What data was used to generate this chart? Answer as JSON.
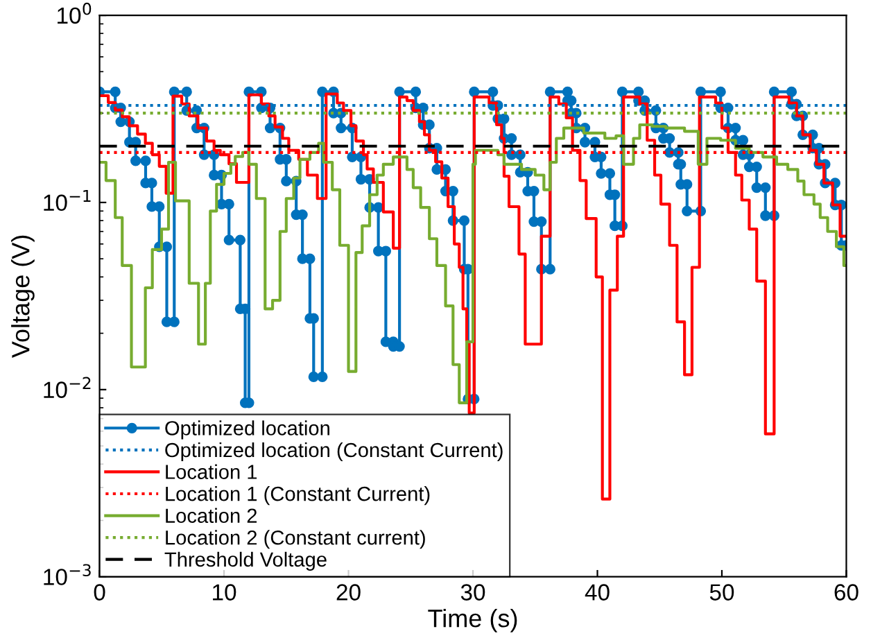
{
  "chart_data": {
    "type": "step",
    "xlabel": "Time (s)",
    "ylabel": "Voltage (V)",
    "log": "y",
    "grid": false,
    "legend": "bottom left",
    "xlim": [
      0,
      60
    ],
    "xticks": [
      0,
      10,
      20,
      30,
      40,
      50,
      60
    ],
    "ylim": [
      0.001,
      1
    ],
    "yticks": [
      {
        "value": 0.001,
        "label": "10$^{−3}$"
      },
      {
        "value": 0.01,
        "label": "10$^{−2}$"
      },
      {
        "value": 0.1,
        "label": "10$^{−1}$"
      },
      {
        "value": 1,
        "label": "10$^{0}$"
      }
    ],
    "series": [
      {
        "name": "Optimized location",
        "type": "line",
        "color": "#0072bd",
        "marker": "circle",
        "line_style": "solid",
        "x": [
          0,
          1.26,
          1.26,
          1.7,
          1.7,
          2.4,
          2.4,
          2.9,
          2.9,
          3.7,
          3.7,
          4.2,
          4.2,
          4.8,
          4.8,
          5.4,
          5.4,
          6.0,
          6.0,
          7.0,
          7.0,
          7.8,
          7.8,
          8.4,
          8.4,
          9.2,
          9.2,
          9.8,
          9.8,
          10.4,
          10.4,
          11.3,
          11.3,
          11.7,
          11.7,
          12.0,
          12.0,
          13.0,
          13.0,
          13.7,
          13.7,
          14.5,
          14.5,
          15.0,
          15.0,
          15.8,
          15.8,
          16.3,
          16.3,
          16.9,
          16.9,
          17.2,
          17.2,
          17.9,
          17.9,
          18.8,
          18.8,
          19.4,
          19.4,
          20.3,
          20.3,
          21.0,
          21.0,
          21.7,
          21.7,
          22.4,
          22.4,
          23.0,
          23.0,
          23.6,
          23.6,
          24.1,
          24.1,
          25.4,
          25.4,
          26.0,
          26.0,
          26.5,
          26.5,
          27.1,
          27.1,
          27.8,
          27.8,
          28.4,
          28.4,
          29.3,
          29.3,
          29.6,
          29.6,
          30.1,
          30.1,
          31.6,
          31.6,
          32.0,
          32.0,
          32.5,
          32.5,
          33.1,
          33.1,
          33.8,
          33.8,
          34.4,
          34.4,
          34.9,
          34.9,
          35.5,
          35.5,
          36.2,
          36.2,
          37.6,
          37.6,
          37.9,
          37.9,
          38.3,
          38.3,
          39.0,
          39.0,
          39.8,
          39.8,
          40.3,
          40.3,
          41.0,
          41.0,
          41.4,
          41.4,
          42.0,
          42.0,
          43.3,
          43.3,
          43.8,
          43.8,
          44.7,
          44.7,
          45.3,
          45.3,
          45.8,
          45.8,
          46.5,
          46.5,
          46.7,
          46.7,
          47.2,
          47.2,
          48.3,
          48.3,
          49.9,
          49.9,
          50.5,
          50.5,
          51.1,
          51.1,
          51.7,
          51.7,
          52.2,
          52.2,
          52.8,
          52.8,
          53.5,
          53.5,
          54.2,
          54.2,
          55.6,
          55.6,
          56.0,
          56.0,
          56.5,
          56.5,
          57.3,
          57.3,
          57.8,
          57.8,
          58.3,
          58.3,
          59.1,
          59.1,
          59.6,
          59.6,
          60
        ],
        "values": [
          0.39,
          0.39,
          0.32,
          0.32,
          0.27,
          0.27,
          0.21,
          0.21,
          0.167,
          0.167,
          0.127,
          0.127,
          0.095,
          0.095,
          0.058,
          0.058,
          0.023,
          0.023,
          0.39,
          0.39,
          0.31,
          0.31,
          0.25,
          0.25,
          0.18,
          0.18,
          0.14,
          0.14,
          0.098,
          0.098,
          0.063,
          0.063,
          0.027,
          0.027,
          0.0085,
          0.0085,
          0.39,
          0.39,
          0.32,
          0.32,
          0.25,
          0.25,
          0.17,
          0.17,
          0.13,
          0.13,
          0.086,
          0.086,
          0.05,
          0.05,
          0.024,
          0.024,
          0.0117,
          0.0117,
          0.39,
          0.39,
          0.3,
          0.3,
          0.25,
          0.25,
          0.175,
          0.175,
          0.133,
          0.133,
          0.094,
          0.094,
          0.055,
          0.055,
          0.018,
          0.018,
          0.017,
          0.017,
          0.39,
          0.39,
          0.32,
          0.32,
          0.26,
          0.26,
          0.195,
          0.195,
          0.15,
          0.15,
          0.115,
          0.115,
          0.08,
          0.08,
          0.044,
          0.044,
          0.0089,
          0.0089,
          0.39,
          0.39,
          0.33,
          0.33,
          0.28,
          0.28,
          0.22,
          0.22,
          0.18,
          0.18,
          0.145,
          0.145,
          0.115,
          0.115,
          0.079,
          0.079,
          0.044,
          0.044,
          0.39,
          0.39,
          0.35,
          0.35,
          0.3,
          0.3,
          0.25,
          0.25,
          0.21,
          0.21,
          0.175,
          0.175,
          0.143,
          0.143,
          0.11,
          0.11,
          0.075,
          0.075,
          0.39,
          0.39,
          0.35,
          0.35,
          0.31,
          0.31,
          0.25,
          0.25,
          0.22,
          0.22,
          0.185,
          0.185,
          0.16,
          0.16,
          0.125,
          0.125,
          0.09,
          0.09,
          0.39,
          0.39,
          0.32,
          0.32,
          0.25,
          0.25,
          0.215,
          0.215,
          0.18,
          0.18,
          0.155,
          0.155,
          0.12,
          0.12,
          0.085,
          0.085,
          0.39,
          0.39,
          0.335,
          0.335,
          0.29,
          0.29,
          0.23,
          0.23,
          0.195,
          0.195,
          0.16,
          0.16,
          0.127,
          0.127,
          0.097,
          0.097,
          0.059,
          0.059
        ]
      },
      {
        "name": "Location 1",
        "color": "#ff0000",
        "line_style": "solid",
        "x": [
          0,
          0.7,
          1.26,
          1.82,
          2.38,
          3.05,
          3.68,
          4.24,
          4.8,
          5.35,
          5.9,
          6.6,
          7.2,
          7.9,
          8.6,
          9.2,
          9.7,
          10.4,
          11.0,
          12.0,
          13.0,
          13.6,
          14.1,
          14.7,
          15.2,
          16.0,
          16.7,
          17.5,
          18.2,
          19.1,
          19.6,
          20.2,
          20.6,
          21.2,
          21.5,
          22.0,
          22.8,
          23.6,
          24.1,
          24.7,
          25.2,
          25.7,
          26.1,
          26.5,
          27.0,
          27.5,
          28.0,
          28.5,
          28.9,
          29.2,
          29.5,
          29.7,
          30.1,
          31.3,
          31.9,
          32.3,
          32.5,
          32.9,
          33.7,
          34.2,
          35.5,
          36.2,
          36.9,
          37.5,
          38.0,
          38.6,
          39.1,
          39.9,
          40.4,
          41.0,
          41.6,
          42.1,
          43.4,
          44.0,
          44.6,
          45.1,
          45.8,
          46.4,
          47.0,
          47.6,
          48.2,
          49.5,
          50.0,
          50.5,
          51.1,
          51.6,
          52.2,
          52.8,
          53.5,
          54.2,
          55.4,
          56.0,
          56.5,
          57.1,
          57.6,
          58.2,
          58.9,
          59.5,
          60
        ],
        "values": [
          0.372,
          0.342,
          0.312,
          0.287,
          0.257,
          0.232,
          0.207,
          0.18,
          0.156,
          0.112,
          0.37,
          0.336,
          0.29,
          0.25,
          0.213,
          0.19,
          0.18,
          0.161,
          0.128,
          0.376,
          0.336,
          0.29,
          0.253,
          0.22,
          0.19,
          0.17,
          0.14,
          0.105,
          0.38,
          0.34,
          0.31,
          0.257,
          0.213,
          0.18,
          0.151,
          0.128,
          0.089,
          0.057,
          0.366,
          0.35,
          0.31,
          0.27,
          0.23,
          0.19,
          0.165,
          0.135,
          0.095,
          0.06,
          0.045,
          0.027,
          0.018,
          0.0075,
          0.366,
          0.34,
          0.26,
          0.22,
          0.138,
          0.095,
          0.053,
          0.0175,
          0.066,
          0.366,
          0.336,
          0.283,
          0.19,
          0.131,
          0.082,
          0.04,
          0.0026,
          0.034,
          0.066,
          0.366,
          0.336,
          0.215,
          0.14,
          0.098,
          0.059,
          0.023,
          0.012,
          0.045,
          0.366,
          0.34,
          0.25,
          0.185,
          0.14,
          0.103,
          0.072,
          0.038,
          0.0058,
          0.366,
          0.34,
          0.29,
          0.23,
          0.19,
          0.16,
          0.127,
          0.097,
          0.066,
          0.066
        ]
      },
      {
        "name": "Location 2",
        "color": "#77ac30",
        "line_style": "solid",
        "x": [
          0,
          0.52,
          1.26,
          1.82,
          2.56,
          3.68,
          4.24,
          4.98,
          5.54,
          6.1,
          7.2,
          7.95,
          8.5,
          8.9,
          9.4,
          10.0,
          10.55,
          10.9,
          11.5,
          12.0,
          12.6,
          13.3,
          13.9,
          14.5,
          15.0,
          15.6,
          16.1,
          16.9,
          17.6,
          18.0,
          18.7,
          19.3,
          20.0,
          20.6,
          21.1,
          21.7,
          22.3,
          22.8,
          23.6,
          24.7,
          25.2,
          25.8,
          26.5,
          27.1,
          27.8,
          28.4,
          28.9,
          29.5,
          30.0,
          30.2,
          32.0,
          32.5,
          33.9,
          35.0,
          35.7,
          36.2,
          36.7,
          37.3,
          38.9,
          40.6,
          41.5,
          42.1,
          42.9,
          43.4,
          44.4,
          45.5,
          47.0,
          48.1,
          48.8,
          49.9,
          51.1,
          52.2,
          53.3,
          54.4,
          55.3,
          56.1,
          56.6,
          57.4,
          57.9,
          58.5,
          59.2,
          59.8,
          60
        ],
        "values": [
          0.164,
          0.131,
          0.083,
          0.046,
          0.0132,
          0.035,
          0.056,
          0.072,
          0.164,
          0.102,
          0.037,
          0.0175,
          0.037,
          0.09,
          0.125,
          0.143,
          0.16,
          0.176,
          0.185,
          0.16,
          0.105,
          0.027,
          0.03,
          0.07,
          0.105,
          0.135,
          0.17,
          0.185,
          0.207,
          0.164,
          0.117,
          0.059,
          0.0125,
          0.054,
          0.075,
          0.11,
          0.14,
          0.16,
          0.175,
          0.15,
          0.12,
          0.094,
          0.064,
          0.046,
          0.028,
          0.0136,
          0.0085,
          0.018,
          0.16,
          0.19,
          0.18,
          0.16,
          0.15,
          0.14,
          0.117,
          0.164,
          0.22,
          0.25,
          0.235,
          0.22,
          0.227,
          0.16,
          0.22,
          0.26,
          0.255,
          0.25,
          0.24,
          0.16,
          0.22,
          0.215,
          0.195,
          0.185,
          0.175,
          0.16,
          0.15,
          0.13,
          0.11,
          0.098,
          0.083,
          0.07,
          0.058,
          0.046,
          0.046
        ]
      }
    ],
    "ref_lines": [
      {
        "axis": "y",
        "value": 0.33,
        "label": "Optimized location (Constant Current)",
        "color": "#0072bd",
        "line_style": "dotted"
      },
      {
        "axis": "y",
        "value": 0.185,
        "label": "Location 1 (Constant Current)",
        "color": "#ff0000",
        "line_style": "dotted"
      },
      {
        "axis": "y",
        "value": 0.3,
        "label": "Location 2 (Constant current)",
        "color": "#77ac30",
        "line_style": "dotted"
      },
      {
        "axis": "y",
        "value": 0.2,
        "label": "Threshold Voltage",
        "color": "#000000",
        "line_style": "dashed"
      }
    ]
  }
}
